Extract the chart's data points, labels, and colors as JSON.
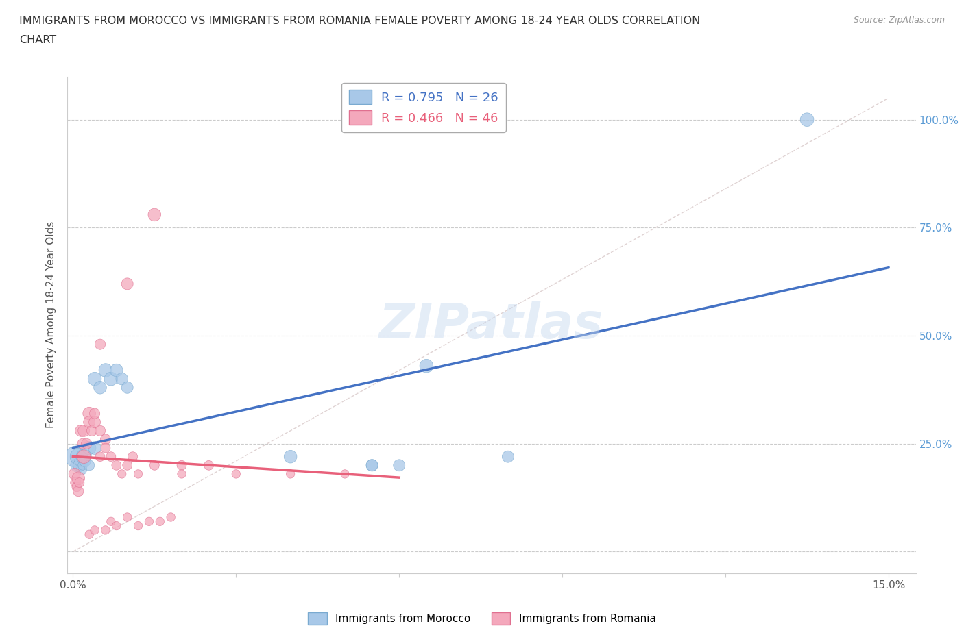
{
  "title_line1": "IMMIGRANTS FROM MOROCCO VS IMMIGRANTS FROM ROMANIA FEMALE POVERTY AMONG 18-24 YEAR OLDS CORRELATION",
  "title_line2": "CHART",
  "source": "Source: ZipAtlas.com",
  "ylabel": "Female Poverty Among 18-24 Year Olds",
  "xlim": [
    -0.001,
    0.155
  ],
  "ylim": [
    -0.05,
    1.1
  ],
  "yticks": [
    0.0,
    0.25,
    0.5,
    0.75,
    1.0
  ],
  "ytick_labels_right": [
    "",
    "25.0%",
    "50.0%",
    "75.0%",
    "100.0%"
  ],
  "xticks": [
    0.0,
    0.03,
    0.06,
    0.09,
    0.12,
    0.15
  ],
  "xtick_labels": [
    "0.0%",
    "",
    "",
    "",
    "",
    "15.0%"
  ],
  "morocco_color": "#a8c8e8",
  "morocco_edge_color": "#7aaad0",
  "romania_color": "#f4a8bc",
  "romania_edge_color": "#e07090",
  "morocco_line_color": "#4472c4",
  "romania_line_color": "#e8607a",
  "diag_line_color": "#d8c8c8",
  "morocco_R": 0.795,
  "morocco_N": 26,
  "romania_R": 0.466,
  "romania_N": 46,
  "watermark": "ZIPatlas",
  "morocco_scatter": [
    [
      0.0005,
      0.22
    ],
    [
      0.0008,
      0.2
    ],
    [
      0.001,
      0.22
    ],
    [
      0.0012,
      0.2
    ],
    [
      0.0014,
      0.21
    ],
    [
      0.0016,
      0.19
    ],
    [
      0.0018,
      0.2
    ],
    [
      0.002,
      0.22
    ],
    [
      0.0022,
      0.21
    ],
    [
      0.003,
      0.2
    ],
    [
      0.003,
      0.24
    ],
    [
      0.004,
      0.24
    ],
    [
      0.004,
      0.4
    ],
    [
      0.005,
      0.38
    ],
    [
      0.006,
      0.42
    ],
    [
      0.007,
      0.4
    ],
    [
      0.008,
      0.42
    ],
    [
      0.009,
      0.4
    ],
    [
      0.01,
      0.38
    ],
    [
      0.04,
      0.22
    ],
    [
      0.055,
      0.2
    ],
    [
      0.065,
      0.43
    ],
    [
      0.055,
      0.2
    ],
    [
      0.06,
      0.2
    ],
    [
      0.08,
      0.22
    ],
    [
      0.135,
      1.0
    ]
  ],
  "morocco_sizes": [
    500,
    200,
    300,
    180,
    150,
    120,
    100,
    250,
    150,
    120,
    200,
    180,
    200,
    180,
    200,
    200,
    180,
    160,
    150,
    180,
    150,
    200,
    150,
    150,
    150,
    200
  ],
  "romania_scatter": [
    [
      0.0003,
      0.18
    ],
    [
      0.0005,
      0.16
    ],
    [
      0.0007,
      0.15
    ],
    [
      0.001,
      0.17
    ],
    [
      0.001,
      0.14
    ],
    [
      0.0012,
      0.16
    ],
    [
      0.0015,
      0.28
    ],
    [
      0.0018,
      0.25
    ],
    [
      0.002,
      0.22
    ],
    [
      0.002,
      0.28
    ],
    [
      0.0025,
      0.25
    ],
    [
      0.003,
      0.32
    ],
    [
      0.003,
      0.3
    ],
    [
      0.0035,
      0.28
    ],
    [
      0.004,
      0.3
    ],
    [
      0.004,
      0.32
    ],
    [
      0.005,
      0.28
    ],
    [
      0.005,
      0.22
    ],
    [
      0.006,
      0.26
    ],
    [
      0.006,
      0.24
    ],
    [
      0.007,
      0.22
    ],
    [
      0.008,
      0.2
    ],
    [
      0.009,
      0.18
    ],
    [
      0.01,
      0.2
    ],
    [
      0.011,
      0.22
    ],
    [
      0.012,
      0.18
    ],
    [
      0.015,
      0.2
    ],
    [
      0.02,
      0.2
    ],
    [
      0.025,
      0.2
    ],
    [
      0.03,
      0.18
    ],
    [
      0.04,
      0.18
    ],
    [
      0.05,
      0.18
    ],
    [
      0.003,
      0.04
    ],
    [
      0.004,
      0.05
    ],
    [
      0.006,
      0.05
    ],
    [
      0.007,
      0.07
    ],
    [
      0.008,
      0.06
    ],
    [
      0.01,
      0.08
    ],
    [
      0.012,
      0.06
    ],
    [
      0.014,
      0.07
    ],
    [
      0.016,
      0.07
    ],
    [
      0.018,
      0.08
    ],
    [
      0.02,
      0.18
    ],
    [
      0.005,
      0.48
    ],
    [
      0.01,
      0.62
    ],
    [
      0.015,
      0.78
    ]
  ],
  "romania_sizes": [
    150,
    120,
    100,
    180,
    120,
    100,
    150,
    120,
    200,
    150,
    120,
    180,
    150,
    120,
    150,
    120,
    120,
    100,
    120,
    100,
    100,
    100,
    80,
    100,
    100,
    80,
    100,
    100,
    100,
    80,
    80,
    80,
    80,
    80,
    80,
    80,
    80,
    80,
    80,
    80,
    80,
    80,
    80,
    120,
    150,
    180
  ]
}
